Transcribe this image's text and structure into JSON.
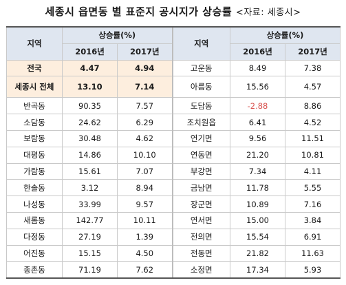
{
  "title": "세종시 읍면동 별 표준지 공시지가 상승률",
  "source": "<자료: 세종시>",
  "headers": {
    "region": "지역",
    "rate": "상승률(%)",
    "y2016": "2016년",
    "y2017": "2017년"
  },
  "left_rows": [
    {
      "name": "전국",
      "v2016": "4.47",
      "v2017": "4.94"
    },
    {
      "name": "세종시 전체",
      "v2016": "13.10",
      "v2017": "7.14"
    },
    {
      "name": "반곡동",
      "v2016": "90.35",
      "v2017": "7.57"
    },
    {
      "name": "소담동",
      "v2016": "24.62",
      "v2017": "6.29"
    },
    {
      "name": "보람동",
      "v2016": "30.48",
      "v2017": "4.62"
    },
    {
      "name": "대평동",
      "v2016": "14.86",
      "v2017": "10.10"
    },
    {
      "name": "가람동",
      "v2016": "15.61",
      "v2017": "7.07"
    },
    {
      "name": "한솔동",
      "v2016": "3.12",
      "v2017": "8.94"
    },
    {
      "name": "나성동",
      "v2016": "33.99",
      "v2017": "9.57"
    },
    {
      "name": "새롬동",
      "v2016": "142.77",
      "v2017": "10.11"
    },
    {
      "name": "다정동",
      "v2016": "27.19",
      "v2017": "1.39"
    },
    {
      "name": "어진동",
      "v2016": "15.15",
      "v2017": "4.50"
    },
    {
      "name": "종촌동",
      "v2016": "71.19",
      "v2017": "7.62"
    }
  ],
  "right_rows": [
    {
      "name": "고운동",
      "v2016": "8.49",
      "v2017": "7.38"
    },
    {
      "name": "아름동",
      "v2016": "15.56",
      "v2017": "4.57"
    },
    {
      "name": "도담동",
      "v2016": "-2.88",
      "v2017": "8.86"
    },
    {
      "name": "조치원읍",
      "v2016": "6.41",
      "v2017": "4.52"
    },
    {
      "name": "연기면",
      "v2016": "9.56",
      "v2017": "11.51"
    },
    {
      "name": "연동면",
      "v2016": "21.20",
      "v2017": "10.81"
    },
    {
      "name": "부강면",
      "v2016": "7.34",
      "v2017": "4.11"
    },
    {
      "name": "금남면",
      "v2016": "11.78",
      "v2017": "5.55"
    },
    {
      "name": "장군면",
      "v2016": "10.89",
      "v2017": "7.16"
    },
    {
      "name": "연서면",
      "v2016": "15.00",
      "v2017": "3.84"
    },
    {
      "name": "전의면",
      "v2016": "15.54",
      "v2017": "6.91"
    },
    {
      "name": "전동면",
      "v2016": "21.82",
      "v2017": "11.63"
    },
    {
      "name": "소정면",
      "v2016": "17.34",
      "v2017": "5.93"
    }
  ],
  "colors": {
    "header_bg": "#dfe6f0",
    "highlight_bg": "#fdeede",
    "negative_text": "#d9534f"
  }
}
